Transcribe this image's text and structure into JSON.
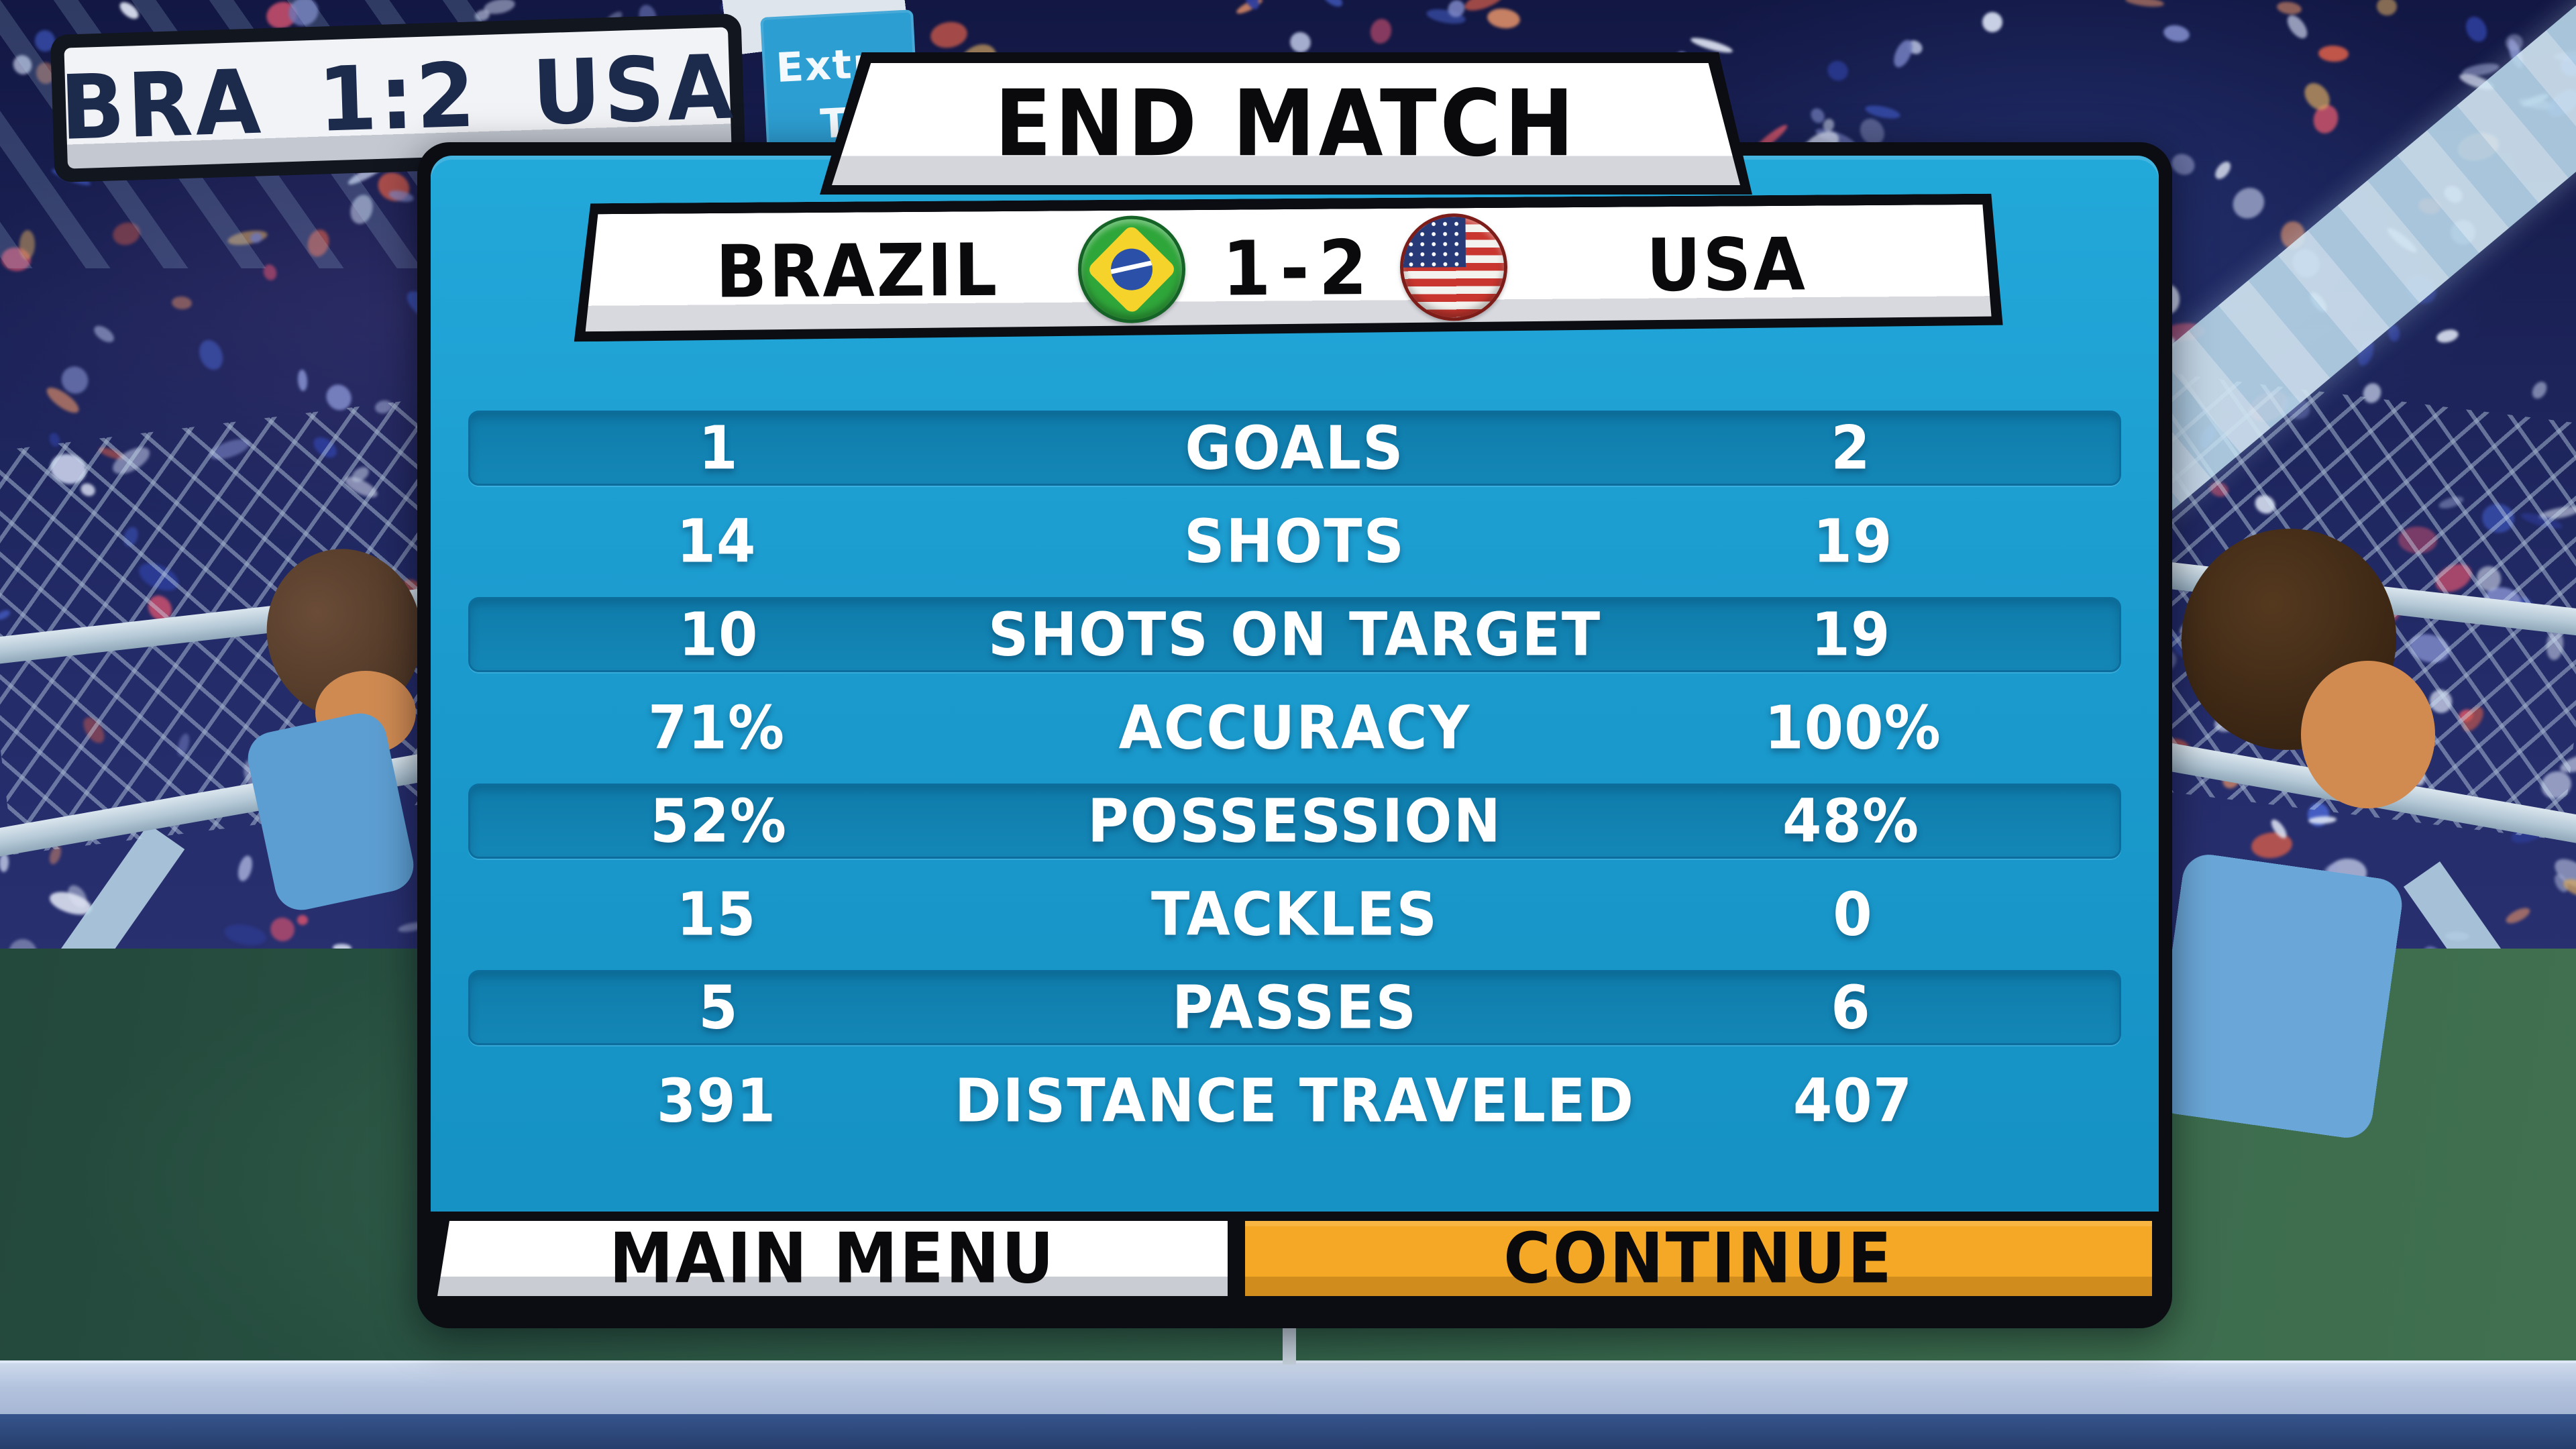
{
  "hud": {
    "scoreboard_text": "BRA 1:2 USA",
    "extra_badge_line1": "Extra",
    "extra_badge_line2": "Ti"
  },
  "banner": {
    "title": "END MATCH"
  },
  "score_bar": {
    "home_team": "BRAZIL",
    "home_score": "1",
    "separator": "-",
    "away_score": "2",
    "away_team": "USA"
  },
  "icons": {
    "home_flag": "brazil-flag",
    "away_flag": "usa-flag"
  },
  "stats": {
    "rows": [
      {
        "home": "1",
        "label": "GOALS",
        "away": "2",
        "highlighted": true
      },
      {
        "home": "14",
        "label": "SHOTS",
        "away": "19",
        "highlighted": false
      },
      {
        "home": "10",
        "label": "SHOTS ON TARGET",
        "away": "19",
        "highlighted": true
      },
      {
        "home": "71%",
        "label": "ACCURACY",
        "away": "100%",
        "highlighted": false
      },
      {
        "home": "52%",
        "label": "POSSESSION",
        "away": "48%",
        "highlighted": true
      },
      {
        "home": "15",
        "label": "TACKLES",
        "away": "0",
        "highlighted": false
      },
      {
        "home": "5",
        "label": "PASSES",
        "away": "6",
        "highlighted": true
      },
      {
        "home": "391",
        "label": "DISTANCE TRAVELED",
        "away": "407",
        "highlighted": false
      }
    ]
  },
  "buttons": {
    "main_menu": "MAIN MENU",
    "continue": "CONTINUE"
  },
  "colors": {
    "panel_blue": "#1b9bce",
    "row_blue": "#1180ae",
    "accent_orange": "#f5a726",
    "badge_blue": "#2d9ed2",
    "hud_navy": "#1c2a4c",
    "field_green": "#2c5845",
    "wall_blue": "#b3c3de"
  }
}
